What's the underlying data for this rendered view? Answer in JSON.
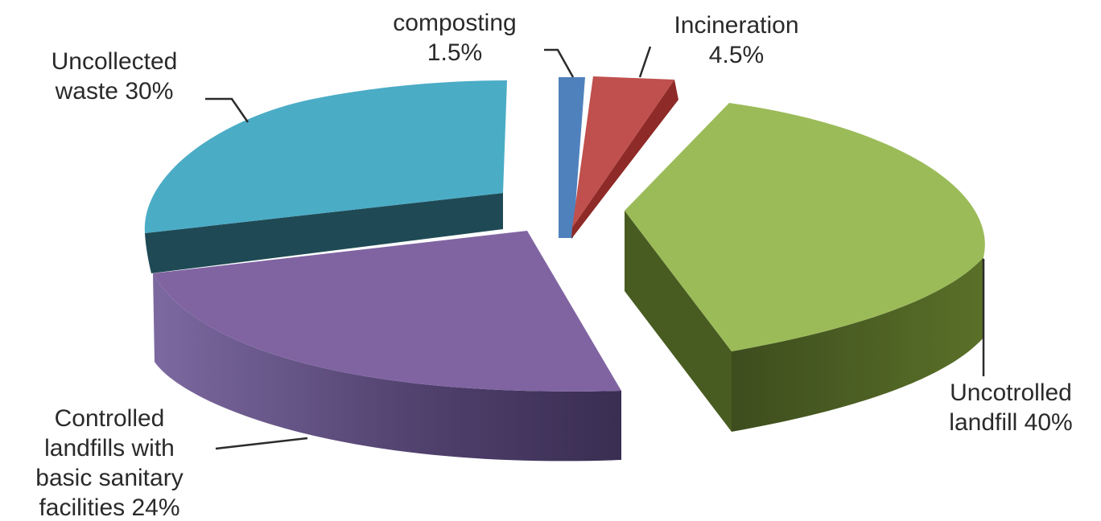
{
  "chart_data": {
    "type": "pie",
    "title": "",
    "style": "3d-exploded",
    "legend": "none",
    "slices": [
      {
        "key": "composting",
        "label_lines": [
          "composting",
          "1.5%"
        ],
        "value": 1.5,
        "color": "#4f81bd"
      },
      {
        "key": "incineration",
        "label_lines": [
          "Incineration",
          "4.5%"
        ],
        "value": 4.5,
        "color": "#c0504d"
      },
      {
        "key": "uncontrolled_landfill",
        "label_lines": [
          "Uncotrolled",
          "landfill 40%"
        ],
        "value": 40,
        "color": "#9bbb59"
      },
      {
        "key": "controlled_landfills",
        "label_lines": [
          "Controlled",
          "landfills with",
          "basic sanitary",
          "facilities 24%"
        ],
        "value": 24,
        "color": "#8064a2"
      },
      {
        "key": "uncollected_waste",
        "label_lines": [
          "Uncollected",
          "waste 30%"
        ],
        "value": 30,
        "color": "#4bacc6"
      }
    ]
  }
}
